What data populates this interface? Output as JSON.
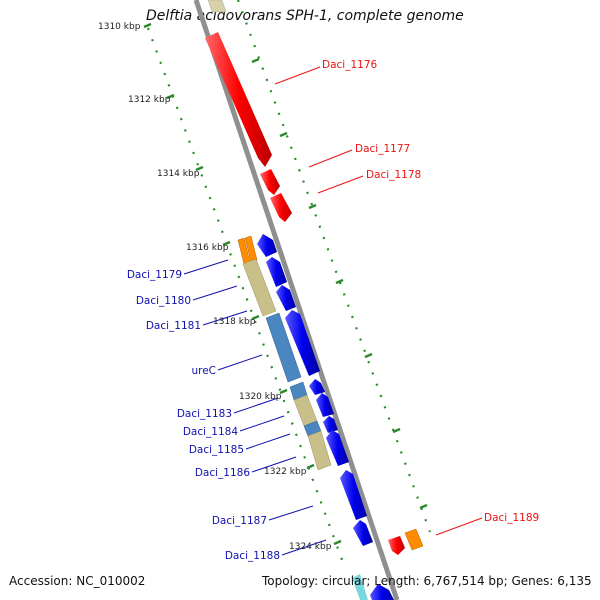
{
  "title": "Delftia acidovorans SPH-1, complete genome",
  "accession": "Accession: NC_010002",
  "stats": "Topology: circular; Length: 6,767,514 bp; Genes: 6,135",
  "colors": {
    "backbone": "#8f8f8f",
    "tick": "#2a8a2a",
    "forward_gene": "#ff0000",
    "reverse_gene": "#0000ee",
    "rna": "#ff8c00",
    "cog_tan": "#c8c088",
    "cog_blue": "#4a86c0",
    "label_red": "#e11111",
    "label_blue": "#1010b0"
  },
  "scale_labels": [
    "1310 kbp",
    "1312 kbp",
    "1314 kbp",
    "1316 kbp",
    "1318 kbp",
    "1320 kbp",
    "1322 kbp",
    "1324 kbp"
  ],
  "gene_labels_forward": [
    "Daci_1176",
    "Daci_1177",
    "Daci_1178",
    "Daci_1189"
  ],
  "gene_labels_reverse": [
    "Daci_1179",
    "Daci_1180",
    "Daci_1181",
    "ureC",
    "Daci_1183",
    "Daci_1184",
    "Daci_1185",
    "Daci_1186",
    "Daci_1187",
    "Daci_1188"
  ]
}
